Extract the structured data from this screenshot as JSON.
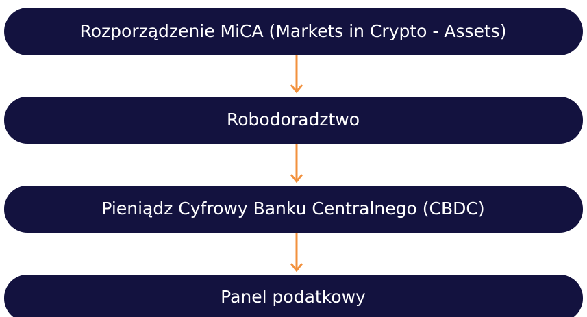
{
  "nodes": [
    {
      "label": "Rozporządzenie MiCA (Markets in Crypto - Assets)"
    },
    {
      "label": "Robodoradztwo"
    },
    {
      "label": "Pieniądz Cyfrowy Banku Centralnego (CBDC)"
    },
    {
      "label": "Panel podatkowy"
    }
  ]
}
